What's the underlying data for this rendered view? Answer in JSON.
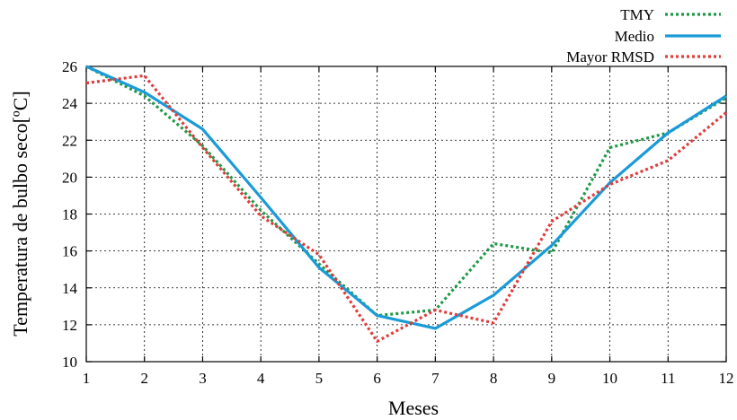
{
  "chart_data": {
    "type": "line",
    "xlabel": "Meses",
    "ylabel": "Temperatura de bulbo seco[ºC]",
    "xlim": [
      1,
      12
    ],
    "ylim": [
      10,
      26
    ],
    "x_ticks": [
      1,
      2,
      3,
      4,
      5,
      6,
      7,
      8,
      9,
      10,
      11,
      12
    ],
    "y_ticks": [
      10,
      12,
      14,
      16,
      18,
      20,
      22,
      24,
      26
    ],
    "grid": true,
    "legend_position": "top-right",
    "x": [
      1,
      2,
      3,
      4,
      5,
      6,
      7,
      8,
      9,
      10,
      11,
      12
    ],
    "series": [
      {
        "name": "TMY",
        "color": "#1e9a46",
        "style": "dotted",
        "values": [
          26.0,
          24.4,
          21.7,
          18.2,
          15.3,
          12.5,
          12.8,
          16.4,
          15.9,
          21.6,
          22.4,
          24.3
        ]
      },
      {
        "name": "Medio",
        "color": "#1a9bd7",
        "style": "solid",
        "values": [
          26.0,
          24.6,
          22.6,
          18.9,
          15.1,
          12.5,
          11.8,
          13.6,
          16.3,
          19.7,
          22.4,
          24.4
        ]
      },
      {
        "name": "Mayor RMSD",
        "color": "#e03c3c",
        "style": "dotted",
        "values": [
          25.1,
          25.5,
          21.6,
          17.9,
          15.8,
          11.1,
          12.8,
          12.1,
          17.6,
          19.6,
          20.9,
          23.5
        ]
      }
    ]
  }
}
